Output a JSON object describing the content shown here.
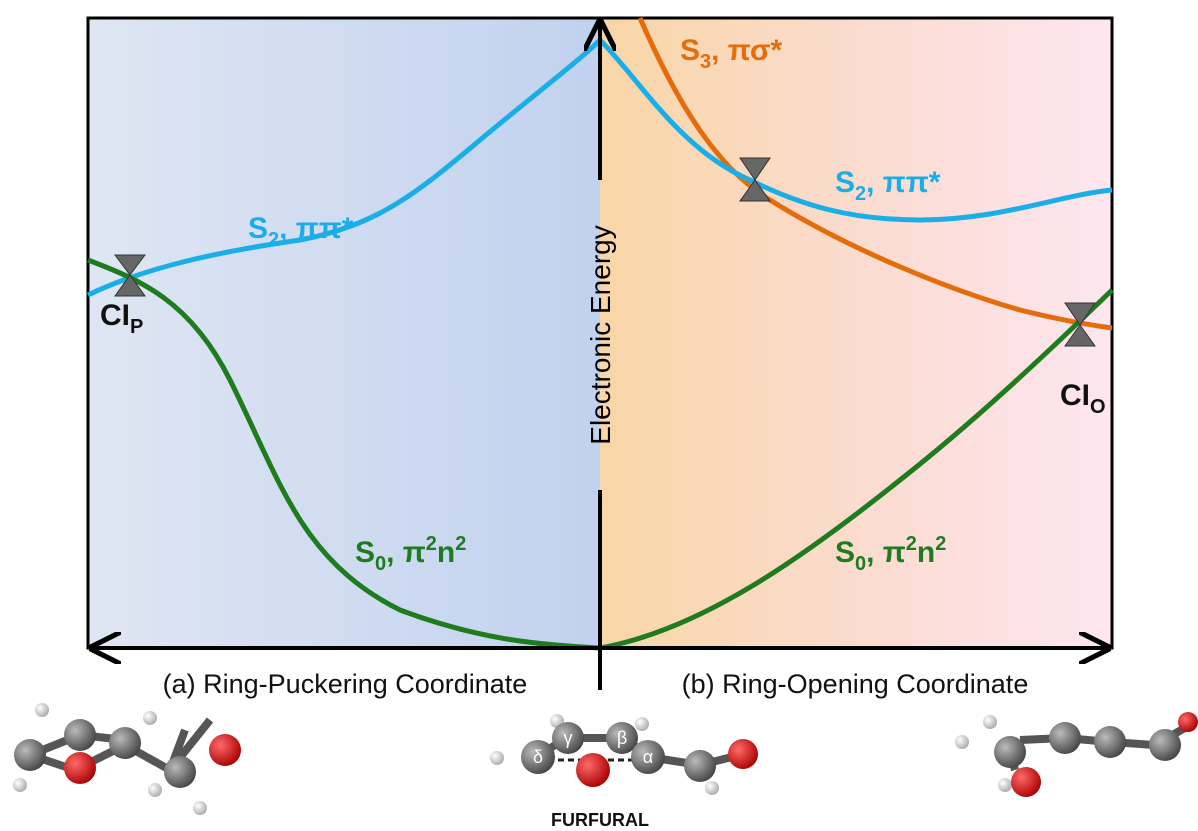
{
  "energy_axis": {
    "label": "Electronic Energy"
  },
  "left_panel": {
    "coordinate": "(a) Ring-Puckering Coordinate",
    "s2_label": [
      "S",
      "2",
      ", ππ*"
    ],
    "s0_label": [
      "S",
      "0",
      ", π",
      "2",
      "n",
      "2"
    ],
    "ci_label": [
      "CI",
      "P"
    ]
  },
  "right_panel": {
    "coordinate": "(b) Ring-Opening Coordinate",
    "s3_label": [
      "S",
      "3",
      ", πσ*"
    ],
    "s2_label": [
      "S",
      "2",
      ", ππ*"
    ],
    "s0_label": [
      "S",
      "0",
      ", π",
      "2",
      "n",
      "2"
    ],
    "ci_label": [
      "CI",
      "O"
    ]
  },
  "molecule": {
    "name": "FURFURAL",
    "atoms": [
      "γ",
      "β",
      "δ",
      "α"
    ]
  }
}
